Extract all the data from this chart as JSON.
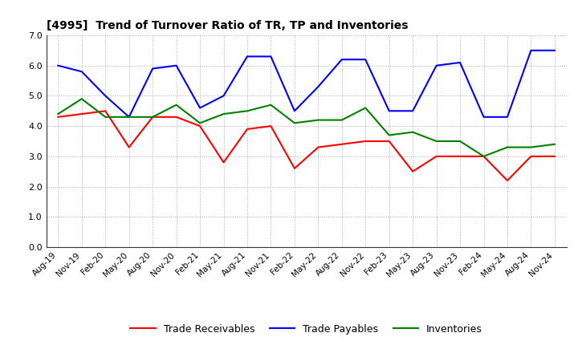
{
  "title": "[4995]  Trend of Turnover Ratio of TR, TP and Inventories",
  "labels": [
    "Aug-19",
    "Nov-19",
    "Feb-20",
    "May-20",
    "Aug-20",
    "Nov-20",
    "Feb-21",
    "May-21",
    "Aug-21",
    "Nov-21",
    "Feb-22",
    "May-22",
    "Aug-22",
    "Nov-22",
    "Feb-23",
    "May-23",
    "Aug-23",
    "Nov-23",
    "Feb-24",
    "May-24",
    "Aug-24",
    "Nov-24"
  ],
  "trade_receivables": [
    4.3,
    4.4,
    4.5,
    3.3,
    4.3,
    4.3,
    4.0,
    2.8,
    3.9,
    4.0,
    2.6,
    3.3,
    3.4,
    3.5,
    3.5,
    2.5,
    3.0,
    3.0,
    3.0,
    2.2,
    3.0,
    3.0
  ],
  "trade_payables": [
    6.0,
    5.8,
    5.0,
    4.3,
    5.9,
    6.0,
    4.6,
    5.0,
    6.3,
    6.3,
    4.5,
    5.3,
    6.2,
    6.2,
    4.5,
    4.5,
    6.0,
    6.1,
    4.3,
    4.3,
    6.5,
    6.5
  ],
  "inventories": [
    4.4,
    4.9,
    4.3,
    4.3,
    4.3,
    4.7,
    4.1,
    4.4,
    4.5,
    4.7,
    4.1,
    4.2,
    4.2,
    4.6,
    3.7,
    3.8,
    3.5,
    3.5,
    3.0,
    3.3,
    3.3,
    3.4
  ],
  "color_tr": "#ff0000",
  "color_tp": "#0000ff",
  "color_inv": "#008000",
  "ylim": [
    0.0,
    7.0
  ],
  "yticks": [
    0.0,
    1.0,
    2.0,
    3.0,
    4.0,
    5.0,
    6.0,
    7.0
  ],
  "legend_tr": "Trade Receivables",
  "legend_tp": "Trade Payables",
  "legend_inv": "Inventories",
  "background_color": "#ffffff",
  "grid_color": "#aaaaaa"
}
